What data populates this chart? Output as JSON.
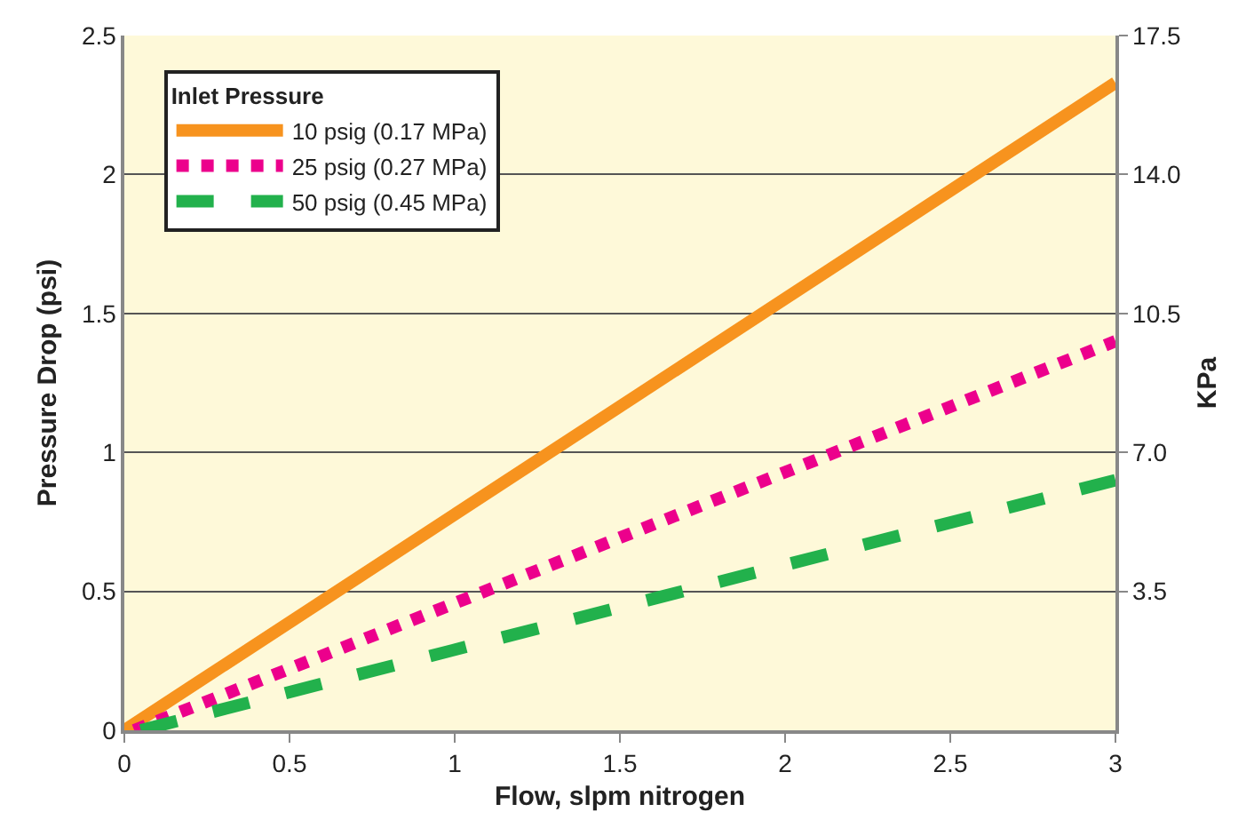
{
  "chart_data": {
    "type": "line",
    "xlabel": "Flow, slpm nitrogen",
    "ylabel": "Pressure Drop (psi)",
    "y2label": "KPa",
    "legend_title": "Inlet Pressure",
    "series": [
      {
        "name": "10 psig (0.17 MPa)",
        "color": "#f7931e",
        "x": [
          0,
          3
        ],
        "values": [
          0,
          2.33
        ],
        "line_style": "solid"
      },
      {
        "name": "25 psig (0.27 MPa)",
        "color": "#ec008c",
        "x": [
          0.03,
          3
        ],
        "values": [
          0,
          1.4
        ],
        "line_style": "dotted"
      },
      {
        "name": "50 psig (0.45 MPa)",
        "color": "#22b14c",
        "x": [
          0.05,
          3
        ],
        "values": [
          0,
          0.9
        ],
        "line_style": "dashed"
      }
    ],
    "xlim": [
      0,
      3
    ],
    "xticks": [
      0,
      0.5,
      1,
      1.5,
      2,
      2.5,
      3
    ],
    "ylim": [
      0,
      2.5
    ],
    "yticks": [
      0,
      0.5,
      1,
      1.5,
      2,
      2.5
    ],
    "y2lim": [
      0,
      17.5
    ],
    "y2ticks": [
      3.5,
      {
        "value": 7,
        "label": "7.0"
      },
      10.5,
      {
        "value": 14,
        "label": "14.0"
      },
      17.5
    ],
    "grid": "y",
    "legend": "top left",
    "marker": "none"
  }
}
